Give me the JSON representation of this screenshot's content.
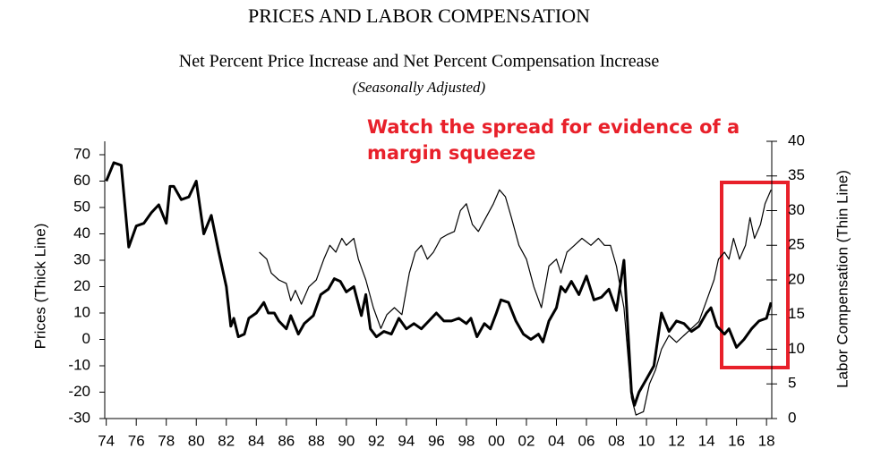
{
  "chart_data": {
    "type": "line",
    "title": "PRICES AND LABOR COMPENSATION",
    "subtitle": "Net Percent Price Increase and Net Percent Compensation Increase",
    "note": "(Seasonally Adjusted)",
    "annotation": "Watch the spread for evidence of a margin squeeze",
    "ylabel": "Prices (Thick Line)",
    "y2label": "Labor Compensation (Thin Line)",
    "xlim": [
      1973.9,
      2018.35
    ],
    "xticks": [
      {
        "value": 1974,
        "label": "74"
      },
      {
        "value": 1976,
        "label": "76"
      },
      {
        "value": 1978,
        "label": "78"
      },
      {
        "value": 1980,
        "label": "80"
      },
      {
        "value": 1982,
        "label": "82"
      },
      {
        "value": 1984,
        "label": "84"
      },
      {
        "value": 1986,
        "label": "86"
      },
      {
        "value": 1988,
        "label": "88"
      },
      {
        "value": 1990,
        "label": "90"
      },
      {
        "value": 1992,
        "label": "92"
      },
      {
        "value": 1994,
        "label": "94"
      },
      {
        "value": 1996,
        "label": "96"
      },
      {
        "value": 1998,
        "label": "98"
      },
      {
        "value": 2000,
        "label": "00"
      },
      {
        "value": 2002,
        "label": "02"
      },
      {
        "value": 2004,
        "label": "04"
      },
      {
        "value": 2006,
        "label": "06"
      },
      {
        "value": 2008,
        "label": "08"
      },
      {
        "value": 2010,
        "label": "10"
      },
      {
        "value": 2012,
        "label": "12"
      },
      {
        "value": 2014,
        "label": "14"
      },
      {
        "value": 2016,
        "label": "16"
      },
      {
        "value": 2018,
        "label": "18"
      }
    ],
    "ylim": [
      -30,
      70
    ],
    "yticks": [
      -30,
      -20,
      -10,
      0,
      10,
      20,
      30,
      40,
      50,
      60,
      70
    ],
    "y2lim": [
      0,
      40
    ],
    "y2ticks": [
      0,
      5,
      10,
      15,
      20,
      25,
      30,
      35,
      40
    ],
    "series": [
      {
        "name": "Prices",
        "color": "#000000",
        "width": 3,
        "x": [
          1974.0,
          1974.5,
          1975.0,
          1975.5,
          1976.0,
          1976.5,
          1977.0,
          1977.5,
          1978.0,
          1978.25,
          1978.5,
          1979.0,
          1979.5,
          1980.0,
          1980.5,
          1981.0,
          1981.5,
          1982.0,
          1982.3,
          1982.5,
          1982.8,
          1983.2,
          1983.5,
          1984.0,
          1984.5,
          1984.8,
          1985.2,
          1985.5,
          1986.0,
          1986.3,
          1986.8,
          1987.2,
          1987.8,
          1988.3,
          1988.8,
          1989.2,
          1989.6,
          1990.0,
          1990.5,
          1991.0,
          1991.3,
          1991.6,
          1992.0,
          1992.5,
          1993.0,
          1993.5,
          1994.0,
          1994.5,
          1995.0,
          1995.5,
          1996.0,
          1996.5,
          1997.0,
          1997.5,
          1998.0,
          1998.3,
          1998.7,
          1999.2,
          1999.6,
          2000.0,
          2000.3,
          2000.8,
          2001.3,
          2001.8,
          2002.3,
          2002.8,
          2003.1,
          2003.5,
          2004.0,
          2004.3,
          2004.6,
          2005.0,
          2005.5,
          2006.0,
          2006.5,
          2007.0,
          2007.5,
          2008.0,
          2008.5,
          2009.0,
          2009.2,
          2009.5,
          2010.0,
          2010.5,
          2011.0,
          2011.5,
          2012.0,
          2012.5,
          2013.0,
          2013.5,
          2014.0,
          2014.3,
          2014.7,
          2015.2,
          2015.5,
          2016.0,
          2016.5,
          2017.0,
          2017.5,
          2018.0,
          2018.3
        ],
        "values": [
          60,
          67,
          66,
          35,
          43,
          44,
          48,
          51,
          44,
          58,
          58,
          53,
          54,
          60,
          40,
          47,
          33,
          20,
          5,
          8,
          1,
          2,
          8,
          10,
          14,
          10,
          10,
          7,
          4,
          9,
          2,
          6,
          9,
          17,
          19,
          23,
          22,
          18,
          20,
          9,
          17,
          4,
          1,
          3,
          2,
          8,
          4,
          6,
          4,
          7,
          10,
          7,
          7,
          8,
          6,
          8,
          1,
          6,
          4,
          10,
          15,
          14,
          7,
          2,
          0,
          2,
          -1,
          7,
          12,
          20,
          18,
          22,
          17,
          24,
          15,
          16,
          19,
          11,
          30,
          -20,
          -25,
          -20,
          -15,
          -10,
          10,
          3,
          7,
          6,
          3,
          5,
          10,
          12,
          5,
          2,
          4,
          -3,
          0,
          4,
          7,
          8,
          14
        ]
      },
      {
        "name": "Labor Compensation",
        "color": "#000000",
        "width": 1.2,
        "axis": "y2",
        "x": [
          1984.2,
          1984.7,
          1985.0,
          1985.5,
          1986.0,
          1986.3,
          1986.6,
          1987.0,
          1987.5,
          1988.0,
          1988.5,
          1988.9,
          1989.3,
          1989.7,
          1990.0,
          1990.5,
          1990.8,
          1991.3,
          1991.8,
          1992.3,
          1992.7,
          1993.2,
          1993.7,
          1994.2,
          1994.6,
          1995.0,
          1995.4,
          1995.8,
          1996.3,
          1996.7,
          1997.2,
          1997.6,
          1998.0,
          1998.4,
          1998.8,
          1999.3,
          1999.8,
          2000.2,
          2000.6,
          2001.0,
          2001.5,
          2002.0,
          2002.5,
          2003.0,
          2003.5,
          2004.0,
          2004.3,
          2004.7,
          2005.2,
          2005.7,
          2006.3,
          2006.8,
          2007.2,
          2007.6,
          2008.0,
          2008.5,
          2009.0,
          2009.3,
          2009.8,
          2010.2,
          2010.6,
          2011.0,
          2011.5,
          2012.0,
          2012.5,
          2013.0,
          2013.5,
          2014.0,
          2014.5,
          2014.8,
          2015.2,
          2015.5,
          2015.8,
          2016.2,
          2016.6,
          2016.9,
          2017.2,
          2017.6,
          2017.9,
          2018.3
        ],
        "values": [
          24,
          23,
          21,
          20,
          19.5,
          17,
          18.5,
          16.5,
          19,
          20,
          23,
          25,
          24,
          26,
          25,
          26,
          23,
          20,
          16,
          13,
          15,
          16,
          15,
          21,
          24,
          25,
          23,
          24,
          26,
          26.5,
          27,
          30,
          31,
          28,
          27,
          29,
          31,
          33,
          32,
          29,
          25,
          23,
          19,
          16,
          22,
          23,
          21,
          24,
          25,
          26,
          25,
          26,
          25,
          25,
          22,
          16,
          3,
          0.5,
          1,
          5,
          7,
          10,
          12,
          11,
          12,
          13,
          14,
          17,
          20,
          23,
          24,
          23,
          26,
          23,
          25,
          29,
          26,
          28,
          31,
          33
        ]
      }
    ]
  }
}
